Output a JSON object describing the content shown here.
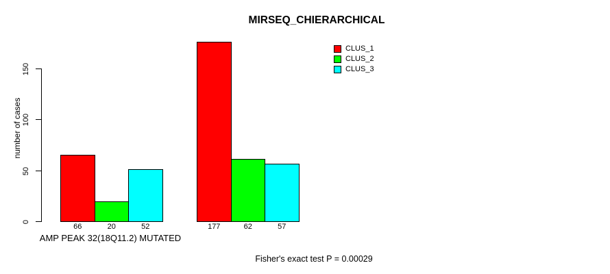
{
  "chart_data": {
    "type": "bar",
    "title": "MIRSEQ_CHIERARCHICAL",
    "ylabel": "number of cases",
    "xlabel": "AMP PEAK 32(18Q11.2) MUTATED",
    "categories": [
      "AMP PEAK 32(18Q11.2) MUTATED",
      ""
    ],
    "series": [
      {
        "name": "CLUS_1",
        "color": "#ff0000",
        "values": [
          66,
          177
        ]
      },
      {
        "name": "CLUS_2",
        "color": "#00ff00",
        "values": [
          20,
          62
        ]
      },
      {
        "name": "CLUS_3",
        "color": "#00ffff",
        "values": [
          52,
          57
        ]
      }
    ],
    "yticks": [
      0,
      50,
      100,
      150
    ],
    "ylim": [
      0,
      177
    ],
    "grid": false,
    "bar_value_labels_shown": true,
    "legend_position": "top-right",
    "annotation": "Fisher's exact test P = 0.00029"
  }
}
